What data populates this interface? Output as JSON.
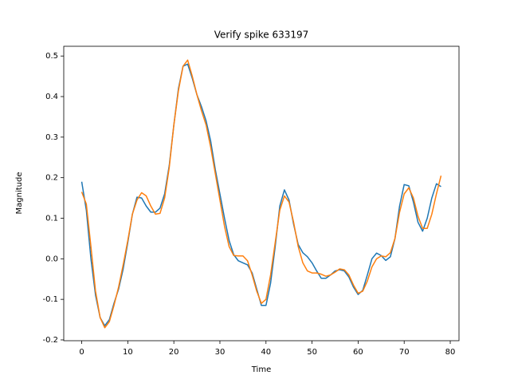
{
  "chart_data": {
    "type": "line",
    "title": "Verify spike 633197",
    "xlabel": "Time",
    "ylabel": "Magnitude",
    "x": [
      0,
      1,
      2,
      3,
      4,
      5,
      6,
      7,
      8,
      9,
      10,
      11,
      12,
      13,
      14,
      15,
      16,
      17,
      18,
      19,
      20,
      21,
      22,
      23,
      24,
      25,
      26,
      27,
      28,
      29,
      30,
      31,
      32,
      33,
      34,
      35,
      36,
      37,
      38,
      39,
      40,
      41,
      42,
      43,
      44,
      45,
      46,
      47,
      48,
      49,
      50,
      51,
      52,
      53,
      54,
      55,
      56,
      57,
      58,
      59,
      60,
      61,
      62,
      63,
      64,
      65,
      66,
      67,
      68,
      69,
      70,
      71,
      72,
      73,
      74,
      75,
      76,
      77,
      78
    ],
    "series": [
      {
        "color": "#1f77b4",
        "values": [
          0.19,
          0.12,
          0.0,
          -0.09,
          -0.145,
          -0.165,
          -0.15,
          -0.11,
          -0.075,
          -0.025,
          0.04,
          0.11,
          0.152,
          0.15,
          0.13,
          0.115,
          0.115,
          0.125,
          0.16,
          0.23,
          0.33,
          0.42,
          0.475,
          0.48,
          0.445,
          0.405,
          0.375,
          0.34,
          0.29,
          0.22,
          0.16,
          0.1,
          0.045,
          0.01,
          -0.005,
          -0.01,
          -0.015,
          -0.035,
          -0.075,
          -0.115,
          -0.115,
          -0.06,
          0.03,
          0.13,
          0.17,
          0.145,
          0.085,
          0.035,
          0.015,
          0.005,
          -0.01,
          -0.03,
          -0.048,
          -0.048,
          -0.04,
          -0.03,
          -0.027,
          -0.03,
          -0.045,
          -0.07,
          -0.088,
          -0.078,
          -0.04,
          0.0,
          0.014,
          0.008,
          -0.004,
          0.005,
          0.05,
          0.13,
          0.183,
          0.18,
          0.14,
          0.09,
          0.068,
          0.1,
          0.15,
          0.185,
          0.178
        ]
      },
      {
        "color": "#ff7f0e",
        "values": [
          0.165,
          0.135,
          0.03,
          -0.08,
          -0.145,
          -0.17,
          -0.155,
          -0.115,
          -0.07,
          -0.015,
          0.045,
          0.11,
          0.145,
          0.163,
          0.155,
          0.13,
          0.11,
          0.112,
          0.15,
          0.225,
          0.33,
          0.415,
          0.475,
          0.49,
          0.45,
          0.405,
          0.365,
          0.33,
          0.275,
          0.21,
          0.145,
          0.08,
          0.03,
          0.008,
          0.007,
          0.007,
          -0.005,
          -0.04,
          -0.08,
          -0.11,
          -0.1,
          -0.04,
          0.04,
          0.12,
          0.155,
          0.14,
          0.09,
          0.03,
          -0.01,
          -0.03,
          -0.035,
          -0.035,
          -0.038,
          -0.043,
          -0.04,
          -0.033,
          -0.025,
          -0.027,
          -0.04,
          -0.065,
          -0.085,
          -0.08,
          -0.055,
          -0.02,
          0.0,
          0.007,
          0.005,
          0.015,
          0.05,
          0.115,
          0.16,
          0.175,
          0.15,
          0.105,
          0.075,
          0.075,
          0.11,
          0.16,
          0.205
        ]
      }
    ],
    "xlim": [
      -3.9,
      81.9
    ],
    "ylim": [
      -0.202,
      0.524
    ],
    "xticks": [
      0,
      10,
      20,
      30,
      40,
      50,
      60,
      70,
      80
    ],
    "yticks": [
      -0.2,
      -0.1,
      {
        "value": 0,
        "label": "0.0"
      },
      0.1,
      0.2,
      0.3,
      0.4,
      0.5
    ],
    "grid": false
  }
}
